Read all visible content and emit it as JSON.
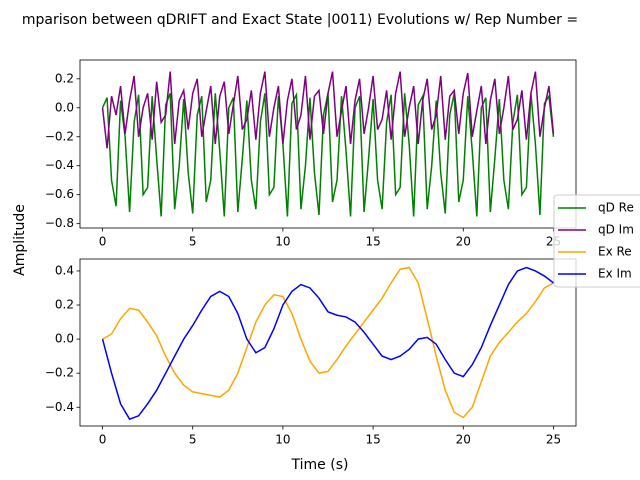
{
  "chart_data": [
    {
      "type": "line",
      "title": "mparison between qDRIFT and Exact State |0011⟩ Evolutions w/ Rep Number =",
      "ylabel": "Amplitude",
      "legend": "center right",
      "xlim": [
        -1.25,
        26.25
      ],
      "xticks": [
        0,
        5,
        10,
        15,
        20,
        25
      ],
      "ylim": [
        -0.83,
        0.33
      ],
      "yticks": [
        {
          "value": -0.8,
          "label": "−0.8"
        },
        {
          "value": -0.6,
          "label": "−0.6"
        },
        {
          "value": -0.4,
          "label": "−0.4"
        },
        {
          "value": -0.2,
          "label": "−0.2"
        },
        {
          "value": 0.0,
          "label": "0.0"
        },
        {
          "value": 0.2,
          "label": "0.2"
        }
      ],
      "x": [
        0,
        0.25,
        0.5,
        0.75,
        1,
        1.25,
        1.5,
        1.75,
        2,
        2.25,
        2.5,
        2.75,
        3,
        3.25,
        3.5,
        3.75,
        4,
        4.25,
        4.5,
        4.75,
        5,
        5.25,
        5.5,
        5.75,
        6,
        6.25,
        6.5,
        6.75,
        7,
        7.25,
        7.5,
        7.75,
        8,
        8.25,
        8.5,
        8.75,
        9,
        9.25,
        9.5,
        9.75,
        10,
        10.25,
        10.5,
        10.75,
        11,
        11.25,
        11.5,
        11.75,
        12,
        12.25,
        12.5,
        12.75,
        13,
        13.25,
        13.5,
        13.75,
        14,
        14.25,
        14.5,
        14.75,
        15,
        15.25,
        15.5,
        15.75,
        16,
        16.25,
        16.5,
        16.75,
        17,
        17.25,
        17.5,
        17.75,
        18,
        18.25,
        18.5,
        18.75,
        19,
        19.25,
        19.5,
        19.75,
        20,
        20.25,
        20.5,
        20.75,
        21,
        21.25,
        21.5,
        21.75,
        22,
        22.25,
        22.5,
        22.75,
        23,
        23.25,
        23.5,
        23.75,
        24,
        24.25,
        24.5,
        24.75,
        25
      ],
      "series": [
        {
          "name": "qD Re",
          "color": "#008000",
          "values": [
            0,
            0.07,
            -0.5,
            -0.68,
            0.05,
            -0.2,
            -0.72,
            -0.1,
            0.09,
            -0.6,
            -0.55,
            0.08,
            -0.35,
            -0.75,
            0.02,
            0.1,
            -0.7,
            -0.4,
            0.06,
            -0.45,
            -0.73,
            -0.05,
            0.08,
            -0.65,
            -0.5,
            0.1,
            -0.3,
            -0.75,
            0.0,
            0.07,
            -0.72,
            -0.35,
            0.05,
            -0.5,
            -0.7,
            -0.1,
            0.1,
            -0.6,
            -0.55,
            0.08,
            -0.25,
            -0.75,
            0.03,
            0.09,
            -0.7,
            -0.4,
            0.07,
            -0.45,
            -0.74,
            -0.05,
            0.1,
            -0.65,
            -0.5,
            0.08,
            -0.3,
            -0.75,
            0.0,
            0.08,
            -0.72,
            -0.35,
            0.06,
            -0.5,
            -0.7,
            -0.1,
            0.09,
            -0.6,
            -0.55,
            0.1,
            -0.25,
            -0.75,
            0.02,
            0.08,
            -0.7,
            -0.4,
            0.05,
            -0.45,
            -0.73,
            -0.05,
            0.1,
            -0.65,
            -0.5,
            0.08,
            -0.3,
            -0.75,
            0.0,
            0.07,
            -0.72,
            -0.35,
            0.06,
            -0.5,
            -0.7,
            -0.1,
            0.09,
            -0.6,
            -0.55,
            0.1,
            -0.25,
            -0.74,
            0.03,
            0.08,
            -0.2
          ]
        },
        {
          "name": "qD Im",
          "color": "#800080",
          "values": [
            0,
            -0.28,
            0.08,
            -0.05,
            0.15,
            -0.18,
            0.05,
            0.22,
            -0.2,
            0.0,
            0.1,
            -0.22,
            0.18,
            -0.1,
            -0.05,
            0.25,
            -0.25,
            0.05,
            0.12,
            -0.15,
            0.1,
            0.2,
            -0.2,
            -0.02,
            0.15,
            -0.25,
            0.08,
            0.18,
            -0.18,
            0.02,
            0.22,
            -0.15,
            -0.08,
            0.12,
            -0.22,
            0.1,
            0.25,
            -0.2,
            0.0,
            0.15,
            -0.25,
            0.05,
            0.2,
            -0.15,
            -0.05,
            0.22,
            -0.22,
            0.08,
            0.12,
            -0.18,
            0.1,
            0.25,
            -0.2,
            -0.02,
            0.15,
            -0.25,
            0.05,
            0.2,
            -0.18,
            0.0,
            0.22,
            -0.15,
            -0.08,
            0.12,
            -0.22,
            0.1,
            0.25,
            -0.2,
            0.0,
            0.15,
            -0.25,
            0.05,
            0.2,
            -0.15,
            -0.05,
            0.22,
            -0.22,
            0.08,
            0.12,
            -0.18,
            0.1,
            0.24,
            -0.2,
            -0.02,
            0.15,
            -0.25,
            0.05,
            0.2,
            -0.18,
            0.0,
            0.22,
            -0.15,
            -0.08,
            0.12,
            -0.22,
            0.1,
            0.25,
            -0.2,
            0.0,
            0.15,
            -0.18
          ]
        }
      ]
    },
    {
      "type": "line",
      "xlabel": "Time (s)",
      "xlim": [
        -1.25,
        26.25
      ],
      "xticks": [
        0,
        5,
        10,
        15,
        20,
        25
      ],
      "ylim": [
        -0.51,
        0.47
      ],
      "yticks": [
        {
          "value": -0.4,
          "label": "−0.4"
        },
        {
          "value": -0.2,
          "label": "−0.2"
        },
        {
          "value": 0.0,
          "label": "0.0"
        },
        {
          "value": 0.2,
          "label": "0.2"
        },
        {
          "value": 0.4,
          "label": "0.4"
        }
      ],
      "x": [
        0,
        0.5,
        1,
        1.5,
        2,
        2.5,
        3,
        3.5,
        4,
        4.5,
        5,
        5.5,
        6,
        6.5,
        7,
        7.5,
        8,
        8.5,
        9,
        9.5,
        10,
        10.5,
        11,
        11.5,
        12,
        12.5,
        13,
        13.5,
        14,
        14.5,
        15,
        15.5,
        16,
        16.5,
        17,
        17.5,
        18,
        18.5,
        19,
        19.5,
        20,
        20.5,
        21,
        21.5,
        22,
        22.5,
        23,
        23.5,
        24,
        24.5,
        25
      ],
      "series": [
        {
          "name": "Ex Re",
          "color": "#ffa500",
          "values": [
            0,
            0.03,
            0.12,
            0.18,
            0.17,
            0.1,
            0.02,
            -0.1,
            -0.2,
            -0.27,
            -0.31,
            -0.32,
            -0.33,
            -0.34,
            -0.3,
            -0.2,
            -0.05,
            0.1,
            0.2,
            0.26,
            0.25,
            0.15,
            0.0,
            -0.13,
            -0.2,
            -0.19,
            -0.12,
            -0.04,
            0.03,
            0.1,
            0.17,
            0.24,
            0.33,
            0.41,
            0.42,
            0.33,
            0.12,
            -0.1,
            -0.3,
            -0.43,
            -0.46,
            -0.4,
            -0.25,
            -0.1,
            -0.02,
            0.04,
            0.1,
            0.15,
            0.22,
            0.3,
            0.33
          ]
        },
        {
          "name": "Ex Im",
          "color": "#0000ff",
          "values": [
            0,
            -0.2,
            -0.38,
            -0.47,
            -0.45,
            -0.38,
            -0.3,
            -0.2,
            -0.1,
            0.0,
            0.08,
            0.17,
            0.25,
            0.28,
            0.25,
            0.15,
            0.0,
            -0.08,
            -0.05,
            0.06,
            0.2,
            0.28,
            0.32,
            0.3,
            0.24,
            0.16,
            0.14,
            0.13,
            0.1,
            0.04,
            -0.03,
            -0.1,
            -0.12,
            -0.1,
            -0.06,
            0.0,
            0.01,
            -0.03,
            -0.12,
            -0.2,
            -0.22,
            -0.15,
            -0.05,
            0.08,
            0.2,
            0.32,
            0.4,
            0.42,
            0.4,
            0.37,
            0.33
          ]
        }
      ]
    }
  ]
}
